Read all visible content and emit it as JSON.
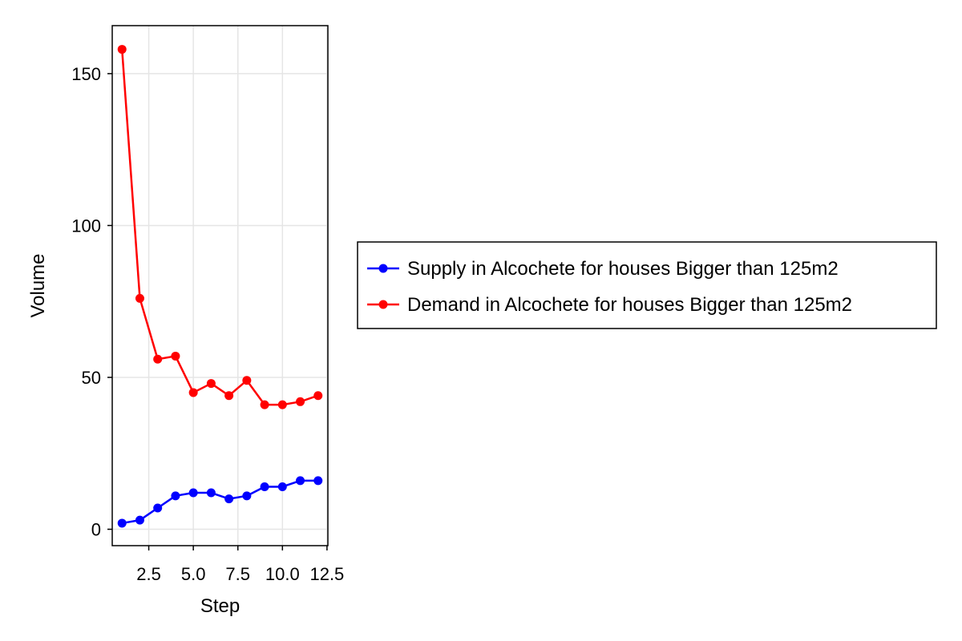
{
  "chart_data": {
    "type": "line",
    "title": "",
    "xlabel": "Step",
    "ylabel": "Volume",
    "x": [
      1,
      2,
      3,
      4,
      5,
      6,
      7,
      8,
      9,
      10,
      11,
      12
    ],
    "xlim": [
      0.45,
      12.55
    ],
    "ylim": [
      -5.4,
      165.8
    ],
    "xticks": [
      2.5,
      5.0,
      7.5,
      10.0,
      12.5
    ],
    "xtick_labels": [
      "2.5",
      "5.0",
      "7.5",
      "10.0",
      "12.5"
    ],
    "yticks": [
      0,
      50,
      100,
      150
    ],
    "ytick_labels": [
      "0",
      "50",
      "100",
      "150"
    ],
    "grid": true,
    "legend_position": "right",
    "series": [
      {
        "name": "Supply in Alcochete for houses Bigger than 125m2",
        "color": "#0000ff",
        "values": [
          2,
          3,
          7,
          11,
          12,
          12,
          10,
          11,
          14,
          14,
          16,
          16
        ]
      },
      {
        "name": "Demand in Alcochete for houses Bigger than 125m2",
        "color": "#ff0000",
        "values": [
          158,
          76,
          56,
          57,
          45,
          48,
          44,
          49,
          41,
          41,
          42,
          44
        ]
      }
    ]
  }
}
